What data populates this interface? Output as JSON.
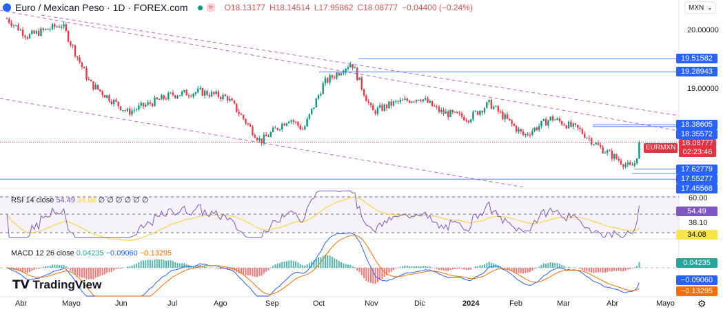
{
  "header": {
    "title": "Euro / Mexican Peso · 1D · FOREX.com",
    "open": "O18.13177",
    "high": "H18.14514",
    "low": "L17.95862",
    "close": "C18.08777",
    "change": "−0.04400 (−0.24%)"
  },
  "currency_select": "MXN",
  "price_axis": {
    "ticks": [
      "20.00000",
      "19.00000"
    ],
    "levels": [
      {
        "v": "19.51582",
        "p": 19.51582
      },
      {
        "v": "19.28943",
        "p": 19.28943
      },
      {
        "v": "18.38605",
        "p": 18.38605
      },
      {
        "v": "18.35572",
        "p": 18.35572
      },
      {
        "v": "17.62779",
        "p": 17.62779
      },
      {
        "v": "17.55277",
        "p": 17.55277
      },
      {
        "v": "17.45568",
        "p": 17.45568
      }
    ],
    "current": {
      "symbol": "EURMXN",
      "price": "18.08777",
      "countdown": "02:23:46"
    }
  },
  "rsi": {
    "label": "RSI 14 close",
    "value": "54.49",
    "ma": "34.08",
    "na": "∅ ∅ ∅ ∅ ∅ ∅",
    "ticks": [
      "60.00",
      "38.10"
    ]
  },
  "macd": {
    "label": "MACD 12 26 close",
    "hist": "0.04235",
    "macd": "−0.09060",
    "signal": "−0.13295"
  },
  "time_axis": [
    "Abr",
    "Mayo",
    "Jun",
    "Jul",
    "Ago",
    "Sep",
    "Oct",
    "Nov",
    "Dic",
    "2024",
    "Feb",
    "Mar",
    "Abr",
    "Mayo"
  ],
  "logo": "TradingView",
  "colors": {
    "up": "#089981",
    "down": "#f23645",
    "level": "#2962ff",
    "rsi": "#7e57c2",
    "rsi_ma": "#f7d54a",
    "macd": "#2962ff",
    "signal": "#ff6d00"
  }
}
